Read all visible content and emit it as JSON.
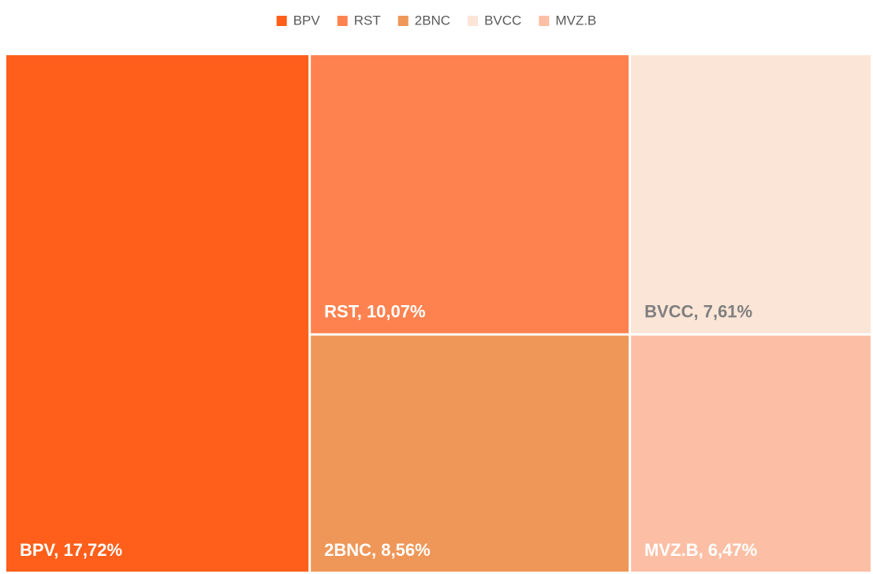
{
  "chart_data": {
    "type": "treemap",
    "categories": [
      "BPV",
      "RST",
      "2BNC",
      "BVCC",
      "MVZ.B"
    ],
    "values": [
      17.72,
      10.07,
      8.56,
      7.61,
      6.47
    ],
    "value_labels": [
      "BPV, 17,72%",
      "RST, 10,07%",
      "2BNC, 8,56%",
      "BVCC, 7,61%",
      "MVZ.B, 6,47%"
    ],
    "colors": [
      "#ff5f1a",
      "#fe824f",
      "#ef9758",
      "#fbe5d6",
      "#fcbfa5"
    ],
    "label_colors": [
      "#ffffff",
      "#ffffff",
      "#ffffff",
      "#7f7f7f",
      "#ffffff"
    ],
    "legend": "top"
  }
}
